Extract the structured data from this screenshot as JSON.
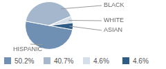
{
  "chart_data": {
    "type": "pie",
    "categories": [
      "HISPANIC",
      "BLACK",
      "WHITE",
      "ASIAN"
    ],
    "values": [
      50.2,
      40.7,
      4.6,
      4.6
    ],
    "value_labels": [
      "50.2%",
      "40.7%",
      "4.6%",
      "4.6%"
    ],
    "colors": [
      "#6f8fb3",
      "#a4b7cc",
      "#d5dfea",
      "#2f5c87"
    ],
    "legend": "bottom"
  }
}
